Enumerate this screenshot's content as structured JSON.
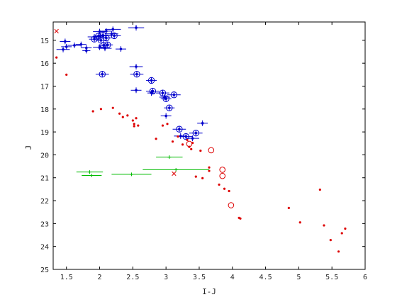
{
  "chart_data": {
    "type": "scatter",
    "xlabel": "I-J",
    "ylabel": "J",
    "xlim": [
      1.3,
      6.0
    ],
    "ylim": [
      25,
      14.2
    ],
    "y_inverted": true,
    "grid": false,
    "xticks": [
      "1.5",
      "2",
      "2.5",
      "3",
      "3.5",
      "4",
      "4.5",
      "5",
      "5.5",
      "6"
    ],
    "yticks": [
      "15",
      "16",
      "17",
      "18",
      "19",
      "20",
      "21",
      "22",
      "23",
      "24",
      "25"
    ],
    "colors": {
      "blue": "#0000cc",
      "red": "#dd0000",
      "green": "#00bb00",
      "axis": "#000000"
    },
    "series": [
      {
        "marker": "dot-with-errorbars",
        "color": "#0000cc",
        "points": [
          {
            "x": 1.48,
            "y": 15.05,
            "xerr": 0.08
          },
          {
            "x": 1.5,
            "y": 15.28,
            "xerr": 0.08
          },
          {
            "x": 1.45,
            "y": 15.4,
            "xerr": 0.1
          },
          {
            "x": 1.62,
            "y": 15.22,
            "xerr": 0.1
          },
          {
            "x": 1.72,
            "y": 15.18,
            "xerr": 0.08
          },
          {
            "x": 1.8,
            "y": 15.33,
            "xerr": 0.08
          },
          {
            "x": 1.8,
            "y": 15.45,
            "xerr": 0.06
          },
          {
            "x": 1.92,
            "y": 14.85,
            "xerr": 0.1
          },
          {
            "x": 2.0,
            "y": 14.62,
            "xerr": 0.1
          },
          {
            "x": 2.05,
            "y": 14.8,
            "xerr": 0.1
          },
          {
            "x": 2.1,
            "y": 14.6,
            "xerr": 0.08
          },
          {
            "x": 2.2,
            "y": 14.52,
            "xerr": 0.12
          },
          {
            "x": 2.18,
            "y": 14.72,
            "xerr": 0.1
          },
          {
            "x": 2.0,
            "y": 15.3,
            "xerr": 0.1
          },
          {
            "x": 2.08,
            "y": 15.35,
            "xerr": 0.1
          },
          {
            "x": 2.32,
            "y": 15.38,
            "xerr": 0.08
          },
          {
            "x": 2.55,
            "y": 14.45,
            "xerr": 0.12
          },
          {
            "x": 2.55,
            "y": 16.15,
            "xerr": 0.1
          },
          {
            "x": 2.55,
            "y": 17.18,
            "xerr": 0.08
          },
          {
            "x": 2.78,
            "y": 17.3,
            "xerr": 0.06
          },
          {
            "x": 2.98,
            "y": 17.48,
            "xerr": 0.08
          },
          {
            "x": 3.0,
            "y": 18.3,
            "xerr": 0.08
          },
          {
            "x": 3.22,
            "y": 19.18,
            "xerr": 0.1
          },
          {
            "x": 3.4,
            "y": 19.28,
            "xerr": 0.1
          },
          {
            "x": 3.55,
            "y": 18.62,
            "xerr": 0.08
          }
        ]
      },
      {
        "marker": "circled-dot-with-errorbars",
        "color": "#0000cc",
        "points": [
          {
            "x": 1.92,
            "y": 14.95,
            "xerr": 0.08
          },
          {
            "x": 1.98,
            "y": 14.82,
            "xerr": 0.08
          },
          {
            "x": 2.02,
            "y": 15.0,
            "xerr": 0.08
          },
          {
            "x": 2.05,
            "y": 14.78,
            "xerr": 0.08
          },
          {
            "x": 2.06,
            "y": 15.22,
            "xerr": 0.08
          },
          {
            "x": 2.1,
            "y": 14.9,
            "xerr": 0.08
          },
          {
            "x": 2.12,
            "y": 15.2,
            "xerr": 0.08
          },
          {
            "x": 2.22,
            "y": 14.8,
            "xerr": 0.1
          },
          {
            "x": 2.04,
            "y": 16.48,
            "xerr": 0.1
          },
          {
            "x": 2.56,
            "y": 16.48,
            "xerr": 0.1
          },
          {
            "x": 2.78,
            "y": 16.75,
            "xerr": 0.08
          },
          {
            "x": 2.8,
            "y": 17.22,
            "xerr": 0.1
          },
          {
            "x": 2.95,
            "y": 17.3,
            "xerr": 0.1
          },
          {
            "x": 3.0,
            "y": 17.55,
            "xerr": 0.08
          },
          {
            "x": 3.12,
            "y": 17.38,
            "xerr": 0.1
          },
          {
            "x": 3.05,
            "y": 17.95,
            "xerr": 0.08
          },
          {
            "x": 3.2,
            "y": 18.88,
            "xerr": 0.1
          },
          {
            "x": 3.3,
            "y": 19.2,
            "xerr": 0.1
          },
          {
            "x": 3.45,
            "y": 19.05,
            "xerr": 0.1
          }
        ]
      },
      {
        "marker": "dot",
        "color": "#dd0000",
        "points": [
          {
            "x": 1.35,
            "y": 15.75
          },
          {
            "x": 1.5,
            "y": 16.5
          },
          {
            "x": 1.9,
            "y": 18.1
          },
          {
            "x": 2.02,
            "y": 18.0
          },
          {
            "x": 2.2,
            "y": 17.95
          },
          {
            "x": 2.3,
            "y": 18.2
          },
          {
            "x": 2.35,
            "y": 18.35
          },
          {
            "x": 2.42,
            "y": 18.28
          },
          {
            "x": 2.5,
            "y": 18.5
          },
          {
            "x": 2.52,
            "y": 18.65
          },
          {
            "x": 2.55,
            "y": 18.4
          },
          {
            "x": 2.52,
            "y": 18.75
          },
          {
            "x": 2.58,
            "y": 18.72
          },
          {
            "x": 2.85,
            "y": 19.3
          },
          {
            "x": 2.95,
            "y": 18.72
          },
          {
            "x": 3.02,
            "y": 18.65
          },
          {
            "x": 3.1,
            "y": 19.42
          },
          {
            "x": 3.18,
            "y": 19.2
          },
          {
            "x": 3.25,
            "y": 19.55
          },
          {
            "x": 3.32,
            "y": 19.35
          },
          {
            "x": 3.35,
            "y": 19.65
          },
          {
            "x": 3.38,
            "y": 19.75
          },
          {
            "x": 3.4,
            "y": 19.48
          },
          {
            "x": 3.52,
            "y": 19.82
          },
          {
            "x": 3.65,
            "y": 20.55
          },
          {
            "x": 3.65,
            "y": 20.7
          },
          {
            "x": 3.45,
            "y": 20.95
          },
          {
            "x": 3.55,
            "y": 21.02
          },
          {
            "x": 3.8,
            "y": 21.3
          },
          {
            "x": 3.88,
            "y": 21.48
          },
          {
            "x": 3.95,
            "y": 21.58
          },
          {
            "x": 4.1,
            "y": 22.75
          },
          {
            "x": 4.12,
            "y": 22.78
          },
          {
            "x": 4.85,
            "y": 22.32
          },
          {
            "x": 5.02,
            "y": 22.95
          },
          {
            "x": 5.32,
            "y": 21.52
          },
          {
            "x": 5.38,
            "y": 23.08
          },
          {
            "x": 5.48,
            "y": 23.72
          },
          {
            "x": 5.6,
            "y": 24.22
          },
          {
            "x": 5.65,
            "y": 23.42
          },
          {
            "x": 5.7,
            "y": 23.22
          }
        ]
      },
      {
        "marker": "open-circle",
        "color": "#dd0000",
        "points": [
          {
            "x": 3.35,
            "y": 19.52
          },
          {
            "x": 3.68,
            "y": 19.8
          },
          {
            "x": 3.85,
            "y": 20.65
          },
          {
            "x": 3.85,
            "y": 20.92
          },
          {
            "x": 3.98,
            "y": 22.2
          }
        ]
      },
      {
        "marker": "x",
        "color": "#dd0000",
        "points": [
          {
            "x": 1.35,
            "y": 14.6
          },
          {
            "x": 3.12,
            "y": 20.82
          }
        ]
      },
      {
        "marker": "plus-with-errorbars",
        "color": "#00bb00",
        "points": [
          {
            "x": 1.85,
            "y": 20.75,
            "xerr": 0.2
          },
          {
            "x": 1.88,
            "y": 20.9,
            "xerr": 0.15
          },
          {
            "x": 2.48,
            "y": 20.85,
            "xerr": 0.3
          },
          {
            "x": 3.05,
            "y": 20.1,
            "xerr": 0.2
          },
          {
            "x": 3.15,
            "y": 20.65,
            "xerr": 0.5
          }
        ]
      }
    ]
  }
}
